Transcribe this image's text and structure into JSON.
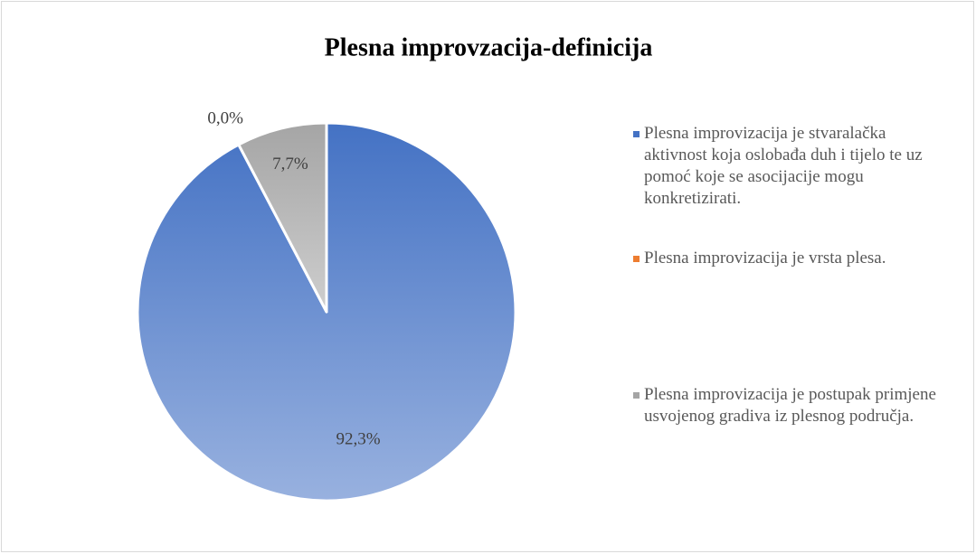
{
  "chart_data": {
    "type": "pie",
    "title": "Plesna improvzacija-definicija",
    "categories": [
      "Plesna improvizacija je stvaralačka aktivnost koja oslobađa duh i tijelo te uz pomoć koje se asocijacije mogu konkretizirati.",
      "Plesna improvizacija je vrsta plesa.",
      "Plesna improvizacija je postupak primjene usvojenog gradiva iz plesnog područja."
    ],
    "values": [
      92.3,
      0,
      7.7
    ],
    "value_labels": [
      "92,3%",
      "0,0%",
      "7,7%"
    ],
    "colors": [
      "#4472c4",
      "#ed7d31",
      "#a5a5a5"
    ],
    "legend": "right"
  }
}
